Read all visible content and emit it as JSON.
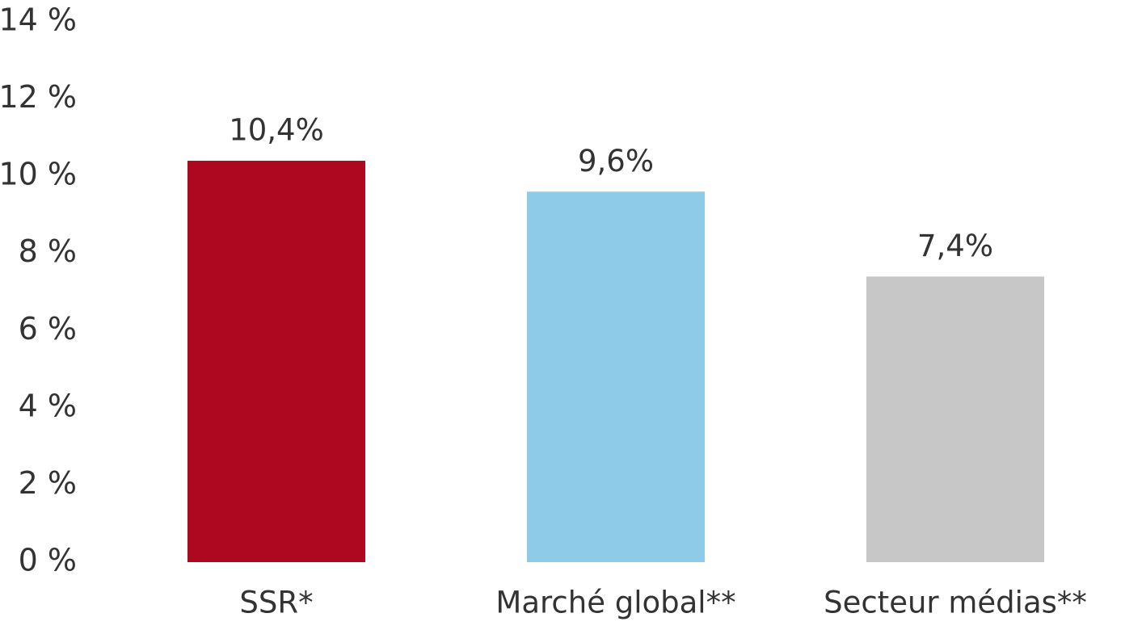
{
  "chart_data": {
    "type": "bar",
    "categories": [
      "SSR*",
      "Marché global**",
      "Secteur médias**"
    ],
    "values": [
      10.4,
      9.6,
      7.4
    ],
    "value_labels": [
      "10,4%",
      "9,6%",
      "7,4%"
    ],
    "colors": [
      "#ae0720",
      "#8ecbe8",
      "#c6c7c6"
    ],
    "ylim": [
      0,
      14
    ],
    "yticks": [
      {
        "value": 0,
        "label": "0 %"
      },
      {
        "value": 2,
        "label": "2 %"
      },
      {
        "value": 4,
        "label": "4 %"
      },
      {
        "value": 6,
        "label": "6 %"
      },
      {
        "value": 8,
        "label": "8 %"
      },
      {
        "value": 10,
        "label": "10 %"
      },
      {
        "value": 12,
        "label": "12 %"
      },
      {
        "value": 14,
        "label": "14 %"
      }
    ],
    "grid": false
  }
}
